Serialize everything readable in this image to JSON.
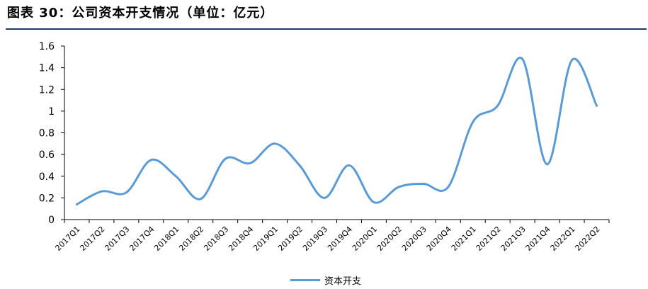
{
  "figure": {
    "title": "图表 30：公司资本开支情况（单位：亿元）"
  },
  "colors": {
    "series": "#5b9bd5",
    "title_rule": "#1f3b63",
    "axis": "#000000"
  },
  "chart_data": {
    "type": "line",
    "smooth": true,
    "title": "",
    "xlabel": "",
    "ylabel": "",
    "ylim": [
      0,
      1.6
    ],
    "yticks": [
      "0",
      "0.2",
      "0.4",
      "0.6",
      "0.8",
      "1",
      "1.2",
      "1.4",
      "1.6"
    ],
    "grid": false,
    "legend": "bottom-center",
    "categories": [
      "2017Q1",
      "2017Q2",
      "2017Q3",
      "2017Q4",
      "2018Q1",
      "2018Q2",
      "2018Q3",
      "2018Q4",
      "2019Q1",
      "2019Q2",
      "2019Q3",
      "2019Q4",
      "2020Q1",
      "2020Q2",
      "2020Q3",
      "2020Q4",
      "2021Q1",
      "2021Q2",
      "2021Q3",
      "2021Q4",
      "2022Q1",
      "2022Q2"
    ],
    "series": [
      {
        "name": "资本开支",
        "values": [
          0.14,
          0.26,
          0.25,
          0.55,
          0.4,
          0.19,
          0.56,
          0.52,
          0.7,
          0.5,
          0.2,
          0.5,
          0.16,
          0.3,
          0.33,
          0.3,
          0.9,
          1.05,
          1.48,
          0.51,
          1.47,
          1.05
        ]
      }
    ]
  }
}
